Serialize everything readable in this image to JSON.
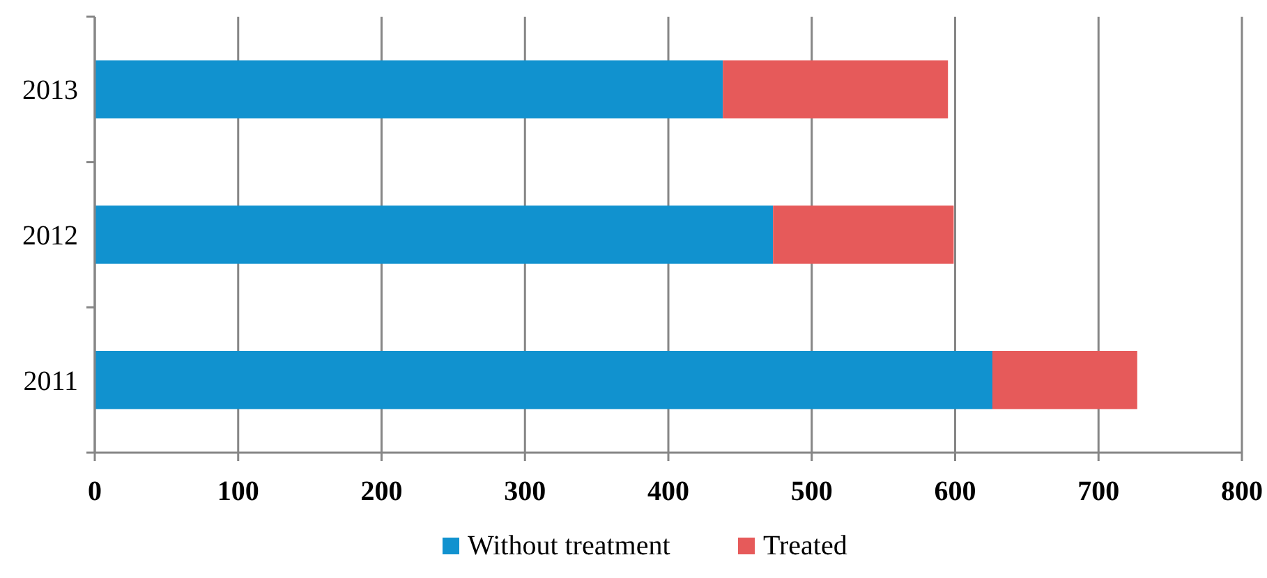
{
  "chart_data": {
    "type": "bar",
    "orientation": "horizontal",
    "stacked": true,
    "categories": [
      "2013",
      "2012",
      "2011"
    ],
    "series": [
      {
        "name": "Without treatment",
        "color": "#1192cf",
        "values": [
          438,
          473,
          626
        ]
      },
      {
        "name": "Treated",
        "color": "#e65a5a",
        "values": [
          157,
          126,
          101
        ]
      }
    ],
    "xlim": [
      0,
      800
    ],
    "xticks": [
      0,
      100,
      200,
      300,
      400,
      500,
      600,
      700,
      800
    ],
    "grid": "x",
    "legend": "bottom"
  }
}
